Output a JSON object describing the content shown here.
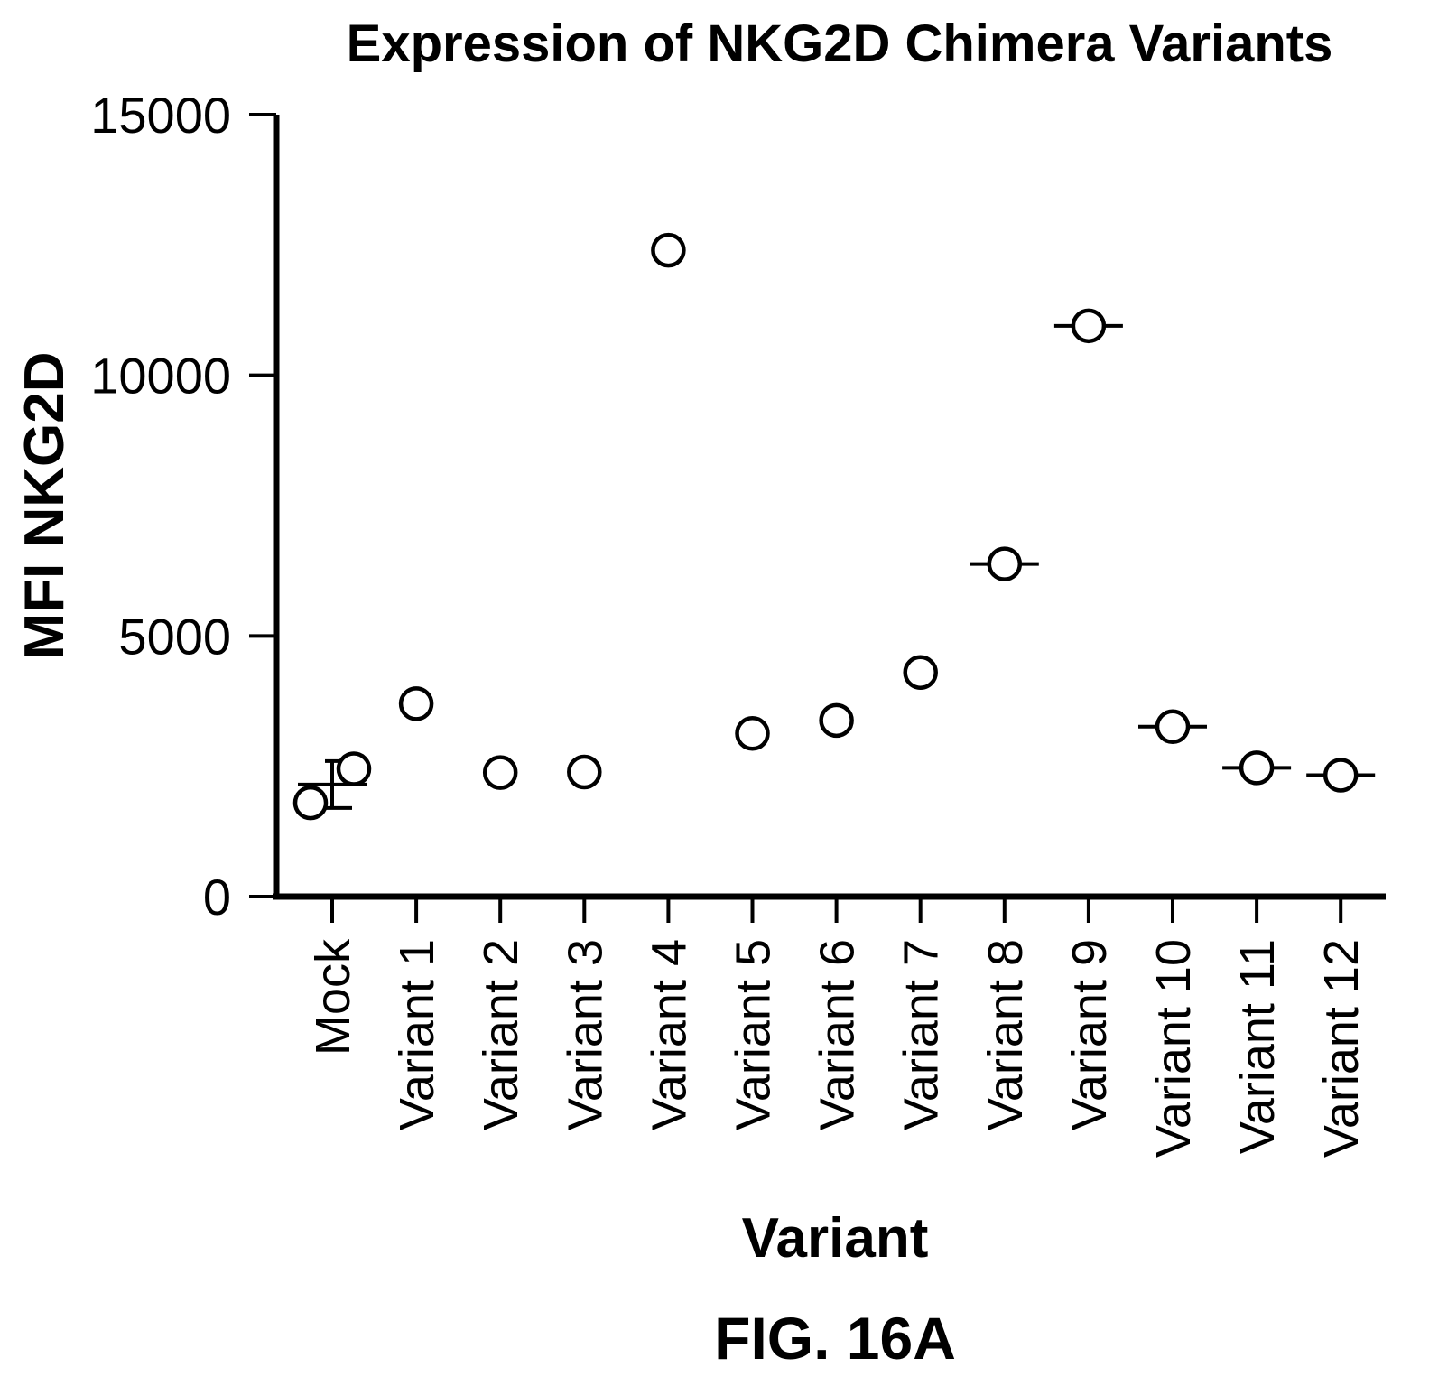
{
  "chart_data": {
    "type": "scatter",
    "title": "Expression of NKG2D Chimera Variants",
    "xlabel": "Variant",
    "ylabel": "MFI NKG2D",
    "categories": [
      "Mock",
      "Variant 1",
      "Variant 2",
      "Variant 3",
      "Variant 4",
      "Variant 5",
      "Variant 6",
      "Variant 7",
      "Variant 8",
      "Variant 9",
      "Variant 10",
      "Variant 11",
      "Variant 12"
    ],
    "points": [
      {
        "category": "Mock",
        "values": [
          1800,
          2450
        ],
        "mean": 2150,
        "error": 450
      },
      {
        "category": "Variant 1",
        "values": [
          3700
        ]
      },
      {
        "category": "Variant 2",
        "values": [
          2380
        ]
      },
      {
        "category": "Variant 3",
        "values": [
          2390
        ]
      },
      {
        "category": "Variant 4",
        "values": [
          12400
        ]
      },
      {
        "category": "Variant 5",
        "values": [
          3130
        ]
      },
      {
        "category": "Variant 6",
        "values": [
          3380
        ]
      },
      {
        "category": "Variant 7",
        "values": [
          4300
        ]
      },
      {
        "category": "Variant 8",
        "values": [
          6380
        ],
        "mean": 6380
      },
      {
        "category": "Variant 9",
        "values": [
          10950
        ],
        "mean": 10950
      },
      {
        "category": "Variant 10",
        "values": [
          3260
        ],
        "mean": 3260
      },
      {
        "category": "Variant 11",
        "values": [
          2470
        ],
        "mean": 2470
      },
      {
        "category": "Variant 12",
        "values": [
          2330
        ],
        "mean": 2330
      }
    ],
    "yticks": [
      "0",
      "5000",
      "10000",
      "15000"
    ],
    "ylim": [
      0,
      15000
    ],
    "grid": false
  },
  "caption": "FIG. 16A"
}
